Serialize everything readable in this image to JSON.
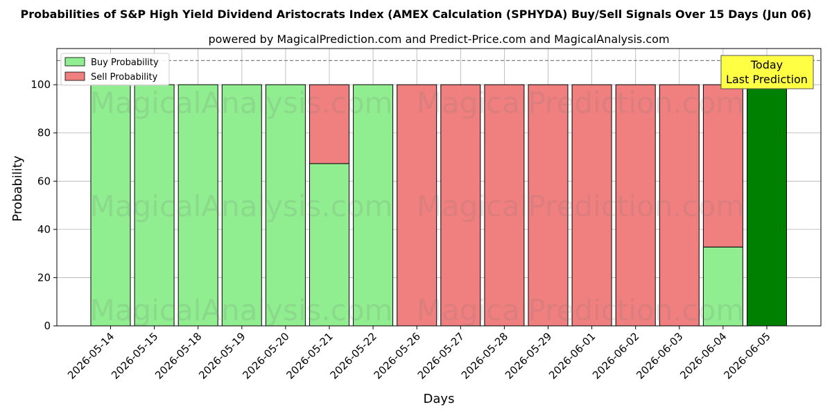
{
  "title": "Probabilities of S&P High Yield Dividend Aristocrats Index (AMEX Calculation (SPHYDA) Buy/Sell Signals Over 15 Days (Jun 06)",
  "subtitle": "powered by MagicalPrediction.com and Predict-Price.com and MagicalAnalysis.com",
  "annotation": {
    "line1": "Today",
    "line2": "Last Prediction"
  },
  "watermarks": [
    "MagicalAnalysis.com",
    "MagicalPrediction.com"
  ],
  "colors": {
    "buy": "#90ee90",
    "sell": "#f08080",
    "today": "#008000",
    "annotation_bg": "#ffff44",
    "grid": "#b0b0b0"
  },
  "chart_data": {
    "type": "bar",
    "stacked": true,
    "xlabel": "Days",
    "ylabel": "Probability",
    "ylim": [
      0,
      115
    ],
    "yticks": [
      0,
      20,
      40,
      60,
      80,
      100
    ],
    "reference_line": 110,
    "grid": true,
    "legend_position": "top-left",
    "categories": [
      "2026-05-14",
      "2026-05-15",
      "2026-05-18",
      "2026-05-19",
      "2026-05-20",
      "2026-05-21",
      "2026-05-22",
      "2026-05-26",
      "2026-05-27",
      "2026-05-28",
      "2026-05-29",
      "2026-06-01",
      "2026-06-02",
      "2026-06-03",
      "2026-06-04",
      "2026-06-05"
    ],
    "series": [
      {
        "name": "Buy Probability",
        "values": [
          100,
          100,
          100,
          100,
          100,
          67.3,
          100,
          0,
          0,
          0,
          0,
          0,
          0,
          0,
          32.7,
          100
        ]
      },
      {
        "name": "Sell Probability",
        "values": [
          0,
          0,
          0,
          0,
          0,
          32.7,
          0,
          100,
          100,
          100,
          100,
          100,
          100,
          100,
          67.3,
          0
        ]
      }
    ],
    "highlight_category": "2026-06-05"
  }
}
